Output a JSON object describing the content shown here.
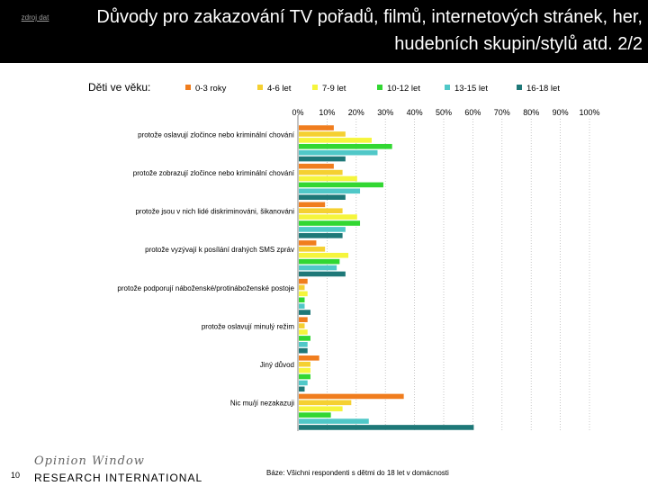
{
  "header": {
    "zdroj_label": "zdroj dat",
    "title": "Důvody pro zakazování TV pořadů, filmů, internetových stránek, her, hudebních skupin/stylů atd. 2/2"
  },
  "footer": {
    "page_number": "10",
    "logo_top": "Opinion Window",
    "logo_bottom": "RESEARCH INTERNATIONAL",
    "base_note": "Báze: Všichni respondenti s dětmi do 18 let v domácnosti"
  },
  "colors": [
    "#f07d1e",
    "#f5d031",
    "#f5f53c",
    "#32d732",
    "#50c8c8",
    "#1e7878"
  ],
  "chart_data": {
    "type": "bar",
    "orientation": "horizontal",
    "legend_title": "Děti ve věku:",
    "legend_position": "top",
    "xlim": [
      0,
      100
    ],
    "xticks": [
      "0%",
      "10%",
      "20%",
      "30%",
      "40%",
      "50%",
      "60%",
      "70%",
      "80%",
      "90%",
      "100%"
    ],
    "grid": true,
    "categories": [
      "protože oslavují zločince nebo kriminální chování",
      "protože zobrazují zločince nebo kriminální chování",
      "protože jsou v nich lidé diskriminováni, šikanováni",
      "protože vyzývají k posílání drahých SMS zpráv",
      "protože podporují náboženské/protináboženské postoje",
      "protože oslavují minulý režim",
      "Jiný důvod",
      "Nic mu/jí nezakazuji"
    ],
    "series": [
      {
        "name": "0-3 roky",
        "values": [
          12,
          12,
          9,
          6,
          3,
          3,
          7,
          36
        ]
      },
      {
        "name": "4-6 let",
        "values": [
          16,
          15,
          15,
          9,
          2,
          2,
          4,
          18
        ]
      },
      {
        "name": "7-9 let",
        "values": [
          25,
          20,
          20,
          17,
          3,
          3,
          4,
          15
        ]
      },
      {
        "name": "10-12 let",
        "values": [
          32,
          29,
          21,
          14,
          2,
          4,
          4,
          11
        ]
      },
      {
        "name": "13-15 let",
        "values": [
          27,
          21,
          16,
          13,
          2,
          3,
          3,
          24
        ]
      },
      {
        "name": "16-18 let",
        "values": [
          16,
          16,
          15,
          16,
          4,
          3,
          2,
          60
        ]
      }
    ]
  }
}
